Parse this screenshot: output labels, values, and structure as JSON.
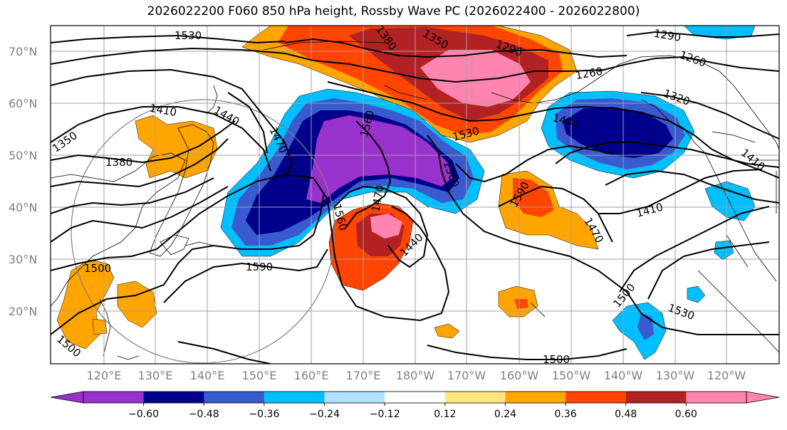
{
  "title": "2026022200 F060 850 hPa height, Rossby Wave PC (2026022400 - 2026022800)",
  "lat_labels": [
    "70°N",
    "60°N",
    "50°N",
    "40°N",
    "30°N",
    "20°N"
  ],
  "lon_labels": [
    "120°E",
    "130°E",
    "140°E",
    "150°E",
    "160°E",
    "170°E",
    "180°W",
    "170°W",
    "160°W",
    "150°W",
    "140°W",
    "130°W",
    "120°W"
  ],
  "contour_labels": [
    "1530",
    "1380",
    "1350",
    "1290",
    "1260",
    "1260",
    "1290",
    "1320",
    "1410",
    "1440",
    "1470",
    "1350",
    "1380",
    "1560",
    "1530",
    "1560",
    "1440",
    "1590",
    "1470",
    "1410",
    "1380",
    "1350",
    "1560",
    "1470",
    "1440",
    "1590",
    "1500",
    "1500",
    "1500",
    "1500",
    "1530",
    "1410",
    "1470"
  ],
  "colorbar": {
    "tick_labels": [
      "−0.60",
      "−0.48",
      "−0.36",
      "−0.24",
      "−0.12",
      "0.12",
      "0.24",
      "0.36",
      "0.48",
      "0.60"
    ],
    "colors": [
      "#9932cc",
      "#00008b",
      "#3a5bd0",
      "#00bfff",
      "#b0e0ff",
      "#ffffff",
      "#ffe680",
      "#ffa500",
      "#ff4500",
      "#b22222",
      "#ff85b0"
    ]
  },
  "fill_colors": {
    "purple": "#9932cc",
    "navy": "#00008b",
    "blue": "#3a5bd0",
    "cyan": "#00bfff",
    "lightblue": "#b0e0ff",
    "yellow": "#ffe680",
    "orange": "#ffa500",
    "redorange": "#ff4500",
    "darkred": "#b22222",
    "pink": "#ff85b0"
  }
}
